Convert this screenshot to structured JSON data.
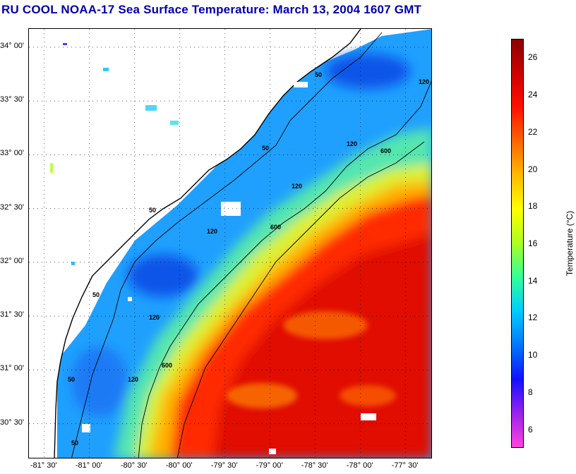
{
  "title": "RU COOL  NOAA-17  Sea Surface Temperature:  March 13, 2004 1607 GMT",
  "map": {
    "lat_labels": [
      {
        "text": "34° 00'",
        "lat": 34.0
      },
      {
        "text": "33° 30'",
        "lat": 33.5
      },
      {
        "text": "33° 00'",
        "lat": 33.0
      },
      {
        "text": "32° 30'",
        "lat": 32.5
      },
      {
        "text": "32° 00'",
        "lat": 32.0
      },
      {
        "text": "31° 30'",
        "lat": 31.5
      },
      {
        "text": "31° 00'",
        "lat": 31.0
      },
      {
        "text": "30° 30'",
        "lat": 30.5
      }
    ],
    "lon_labels": [
      {
        "text": "-81° 30'",
        "lon": -81.5
      },
      {
        "text": "-81° 00'",
        "lon": -81.0
      },
      {
        "text": "-80° 30'",
        "lon": -80.5
      },
      {
        "text": "-80° 00'",
        "lon": -80.0
      },
      {
        "text": "-79° 30'",
        "lon": -79.5
      },
      {
        "text": "-79° 00'",
        "lon": -79.0
      },
      {
        "text": "-78° 30'",
        "lon": -78.5
      },
      {
        "text": "-78° 00'",
        "lon": -78.0
      },
      {
        "text": "-77° 30'",
        "lon": -77.5
      }
    ],
    "lat_range": [
      30.17,
      34.17
    ],
    "lon_range": [
      -81.67,
      -77.2
    ],
    "grid": "dotted",
    "isobath_labels": [
      "50",
      "50",
      "50",
      "50",
      "50",
      "50",
      "120",
      "120",
      "120",
      "120",
      "120",
      "120",
      "600",
      "600",
      "600"
    ],
    "land_color": "#ffffff",
    "coast_color": "#000000"
  },
  "colorbar": {
    "label": "Temperature (°C)",
    "ticks": [
      "26",
      "24",
      "22",
      "20",
      "18",
      "16",
      "14",
      "12",
      "10",
      "8",
      "6"
    ],
    "range": [
      5,
      27
    ],
    "colors": [
      "#ff44dd",
      "#9922ee",
      "#1111ff",
      "#0077ff",
      "#00ccff",
      "#33ff99",
      "#aaff22",
      "#ffff00",
      "#ffbb00",
      "#ff6600",
      "#ff1100",
      "#cc0000",
      "#8b0000"
    ]
  }
}
